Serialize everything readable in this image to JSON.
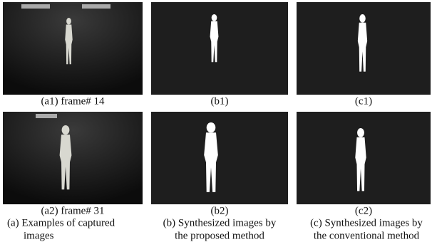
{
  "figure": {
    "panels": [
      {
        "label": "(a1) frame# 14"
      },
      {
        "label": "(b1)"
      },
      {
        "label": "(c1)"
      },
      {
        "label": "(a2) frame# 31"
      },
      {
        "label": "(b2)"
      },
      {
        "label": "(c2)"
      }
    ],
    "captions": [
      [
        "(a) Examples of captured",
        "images"
      ],
      [
        "(b) Synthesized images by",
        "the proposed method"
      ],
      [
        "(c) Synthesized images by",
        "the conventional method"
      ]
    ]
  }
}
